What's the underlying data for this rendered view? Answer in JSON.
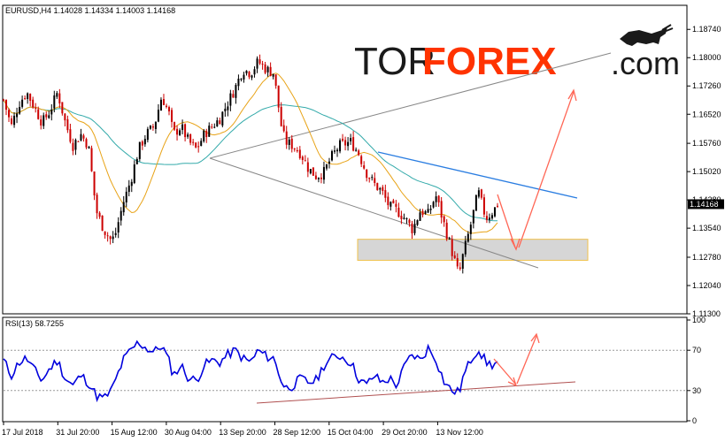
{
  "main_chart": {
    "header": "EURUSD,H4  1.14028 1.14334 1.14003 1.14168",
    "price_ticks": [
      "1.18740",
      "1.18000",
      "1.17260",
      "1.16520",
      "1.15760",
      "1.15020",
      "1.14280",
      "1.13540",
      "1.12780",
      "1.12040",
      "1.11300"
    ],
    "current_price": "1.14168",
    "logo": {
      "part1": "TOR",
      "part2": "FOREX",
      "part3": ".com"
    }
  },
  "rsi_panel": {
    "header": "RSI(13) 58.7255",
    "ticks": [
      "100",
      "70",
      "30",
      "0"
    ]
  },
  "time_axis": {
    "labels": [
      "17 Jul 2018",
      "31 Jul 20:00",
      "15 Aug 12:00",
      "30 Aug 04:00",
      "13 Sep 20:00",
      "28 Sep 12:00",
      "15 Oct 04:00",
      "29 Oct 20:00",
      "13 Nov 12:00"
    ]
  },
  "colors": {
    "bull_candle": "#000000",
    "bear_candle": "#cc0000",
    "ma_fast": "#e8a317",
    "ma_slow": "#33aaaa",
    "rsi_line": "#0000dd",
    "forecast_arrow": "#ff6655",
    "channel_line": "#888888",
    "resistance_line": "#2a7de1",
    "support_zone": "#cccccc"
  },
  "chart_data": {
    "type": "candlestick",
    "symbol": "EURUSD",
    "timeframe": "H4",
    "ylim": [
      1.113,
      1.19
    ],
    "ohlc_last": {
      "open": 1.14028,
      "high": 1.14334,
      "low": 1.14003,
      "close": 1.14168
    },
    "close_path": [
      [
        "2018-07-17",
        1.169
      ],
      [
        "2018-07-19",
        1.162
      ],
      [
        "2018-07-21",
        1.168
      ],
      [
        "2018-07-23",
        1.171
      ],
      [
        "2018-07-25",
        1.167
      ],
      [
        "2018-07-27",
        1.163
      ],
      [
        "2018-07-29",
        1.166
      ],
      [
        "2018-07-31",
        1.171
      ],
      [
        "2018-08-02",
        1.163
      ],
      [
        "2018-08-04",
        1.157
      ],
      [
        "2018-08-06",
        1.16
      ],
      [
        "2018-08-08",
        1.157
      ],
      [
        "2018-08-10",
        1.14
      ],
      [
        "2018-08-12",
        1.135
      ],
      [
        "2018-08-14",
        1.132
      ],
      [
        "2018-08-15",
        1.134
      ],
      [
        "2018-08-17",
        1.142
      ],
      [
        "2018-08-19",
        1.148
      ],
      [
        "2018-08-21",
        1.156
      ],
      [
        "2018-08-23",
        1.16
      ],
      [
        "2018-08-25",
        1.162
      ],
      [
        "2018-08-27",
        1.17
      ],
      [
        "2018-08-29",
        1.165
      ],
      [
        "2018-08-30",
        1.16
      ],
      [
        "2018-09-01",
        1.162
      ],
      [
        "2018-09-03",
        1.158
      ],
      [
        "2018-09-05",
        1.156
      ],
      [
        "2018-09-07",
        1.16
      ],
      [
        "2018-09-09",
        1.162
      ],
      [
        "2018-09-11",
        1.164
      ],
      [
        "2018-09-13",
        1.168
      ],
      [
        "2018-09-15",
        1.172
      ],
      [
        "2018-09-17",
        1.177
      ],
      [
        "2018-09-19",
        1.176
      ],
      [
        "2018-09-21",
        1.179
      ],
      [
        "2018-09-23",
        1.177
      ],
      [
        "2018-09-25",
        1.176
      ],
      [
        "2018-09-27",
        1.162
      ],
      [
        "2018-09-28",
        1.158
      ],
      [
        "2018-09-30",
        1.157
      ],
      [
        "2018-10-02",
        1.155
      ],
      [
        "2018-10-04",
        1.151
      ],
      [
        "2018-10-06",
        1.149
      ],
      [
        "2018-10-08",
        1.15
      ],
      [
        "2018-10-10",
        1.154
      ],
      [
        "2018-10-12",
        1.157
      ],
      [
        "2018-10-15",
        1.158
      ],
      [
        "2018-10-17",
        1.155
      ],
      [
        "2018-10-19",
        1.15
      ],
      [
        "2018-10-21",
        1.147
      ],
      [
        "2018-10-23",
        1.145
      ],
      [
        "2018-10-25",
        1.141
      ],
      [
        "2018-10-27",
        1.14
      ],
      [
        "2018-10-29",
        1.138
      ],
      [
        "2018-10-31",
        1.135
      ],
      [
        "2018-11-02",
        1.14
      ],
      [
        "2018-11-04",
        1.139
      ],
      [
        "2018-11-06",
        1.144
      ],
      [
        "2018-11-08",
        1.137
      ],
      [
        "2018-11-10",
        1.13
      ],
      [
        "2018-11-12",
        1.123
      ],
      [
        "2018-11-13",
        1.128
      ],
      [
        "2018-11-15",
        1.136
      ],
      [
        "2018-11-17",
        1.145
      ],
      [
        "2018-11-19",
        1.138
      ],
      [
        "2018-11-21",
        1.14
      ],
      [
        "2018-11-22",
        1.1417
      ]
    ],
    "rsi_path": [
      [
        "2018-07-17",
        60
      ],
      [
        "2018-07-19",
        45
      ],
      [
        "2018-07-21",
        58
      ],
      [
        "2018-07-23",
        62
      ],
      [
        "2018-07-25",
        50
      ],
      [
        "2018-07-27",
        40
      ],
      [
        "2018-07-29",
        52
      ],
      [
        "2018-07-31",
        60
      ],
      [
        "2018-08-02",
        42
      ],
      [
        "2018-08-04",
        35
      ],
      [
        "2018-08-06",
        45
      ],
      [
        "2018-08-08",
        38
      ],
      [
        "2018-08-10",
        25
      ],
      [
        "2018-08-12",
        22
      ],
      [
        "2018-08-14",
        30
      ],
      [
        "2018-08-15",
        40
      ],
      [
        "2018-08-17",
        60
      ],
      [
        "2018-08-19",
        70
      ],
      [
        "2018-08-21",
        78
      ],
      [
        "2018-08-23",
        72
      ],
      [
        "2018-08-25",
        68
      ],
      [
        "2018-08-27",
        75
      ],
      [
        "2018-08-29",
        58
      ],
      [
        "2018-08-30",
        45
      ],
      [
        "2018-09-01",
        55
      ],
      [
        "2018-09-03",
        42
      ],
      [
        "2018-09-05",
        40
      ],
      [
        "2018-09-07",
        55
      ],
      [
        "2018-09-09",
        60
      ],
      [
        "2018-09-11",
        58
      ],
      [
        "2018-09-13",
        65
      ],
      [
        "2018-09-15",
        70
      ],
      [
        "2018-09-17",
        62
      ],
      [
        "2018-09-19",
        58
      ],
      [
        "2018-09-21",
        70
      ],
      [
        "2018-09-23",
        64
      ],
      [
        "2018-09-25",
        62
      ],
      [
        "2018-09-27",
        40
      ],
      [
        "2018-09-28",
        32
      ],
      [
        "2018-09-30",
        35
      ],
      [
        "2018-10-02",
        42
      ],
      [
        "2018-10-04",
        38
      ],
      [
        "2018-10-06",
        40
      ],
      [
        "2018-10-08",
        55
      ],
      [
        "2018-10-10",
        62
      ],
      [
        "2018-10-12",
        65
      ],
      [
        "2018-10-15",
        58
      ],
      [
        "2018-10-17",
        42
      ],
      [
        "2018-10-19",
        35
      ],
      [
        "2018-10-21",
        45
      ],
      [
        "2018-10-23",
        38
      ],
      [
        "2018-10-25",
        42
      ],
      [
        "2018-10-27",
        35
      ],
      [
        "2018-10-29",
        55
      ],
      [
        "2018-10-31",
        66
      ],
      [
        "2018-11-02",
        60
      ],
      [
        "2018-11-04",
        72
      ],
      [
        "2018-11-06",
        62
      ],
      [
        "2018-11-08",
        40
      ],
      [
        "2018-11-10",
        30
      ],
      [
        "2018-11-12",
        28
      ],
      [
        "2018-11-13",
        42
      ],
      [
        "2018-11-15",
        60
      ],
      [
        "2018-11-17",
        72
      ],
      [
        "2018-11-19",
        58
      ],
      [
        "2018-11-21",
        55
      ],
      [
        "2018-11-22",
        58.7255
      ]
    ],
    "rsi_period": 13,
    "rsi_last": 58.7255,
    "rsi_levels": [
      70,
      30
    ],
    "rsi_ylim": [
      0,
      100
    ],
    "support_zone": [
      1.127,
      1.1325
    ],
    "overlays": [
      "moving-average-fast",
      "moving-average-slow",
      "descending-channel",
      "resistance-trendline",
      "forecast-arrows"
    ],
    "grid": false
  }
}
